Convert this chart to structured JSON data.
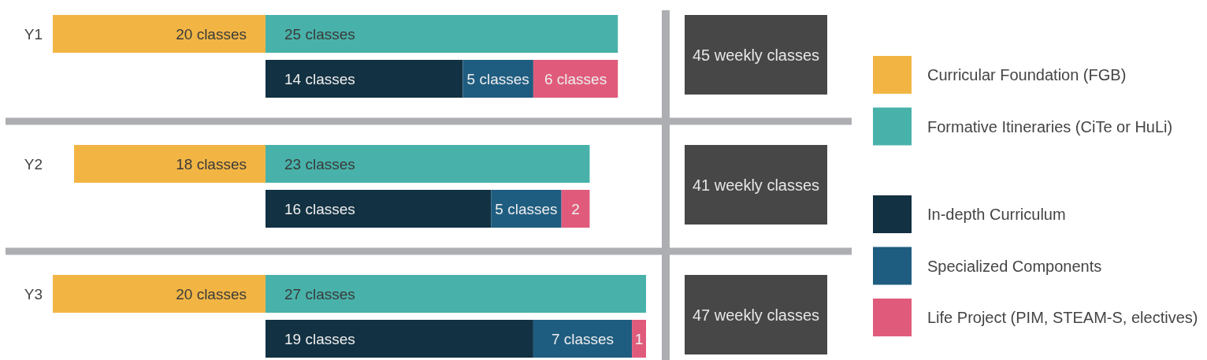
{
  "chart_data": [
    {
      "type": "bar",
      "orientation": "horizontal",
      "categories": [
        "Y1"
      ],
      "series": [
        {
          "name": "Curricular Foundation (FGB)",
          "color": "#f2b544",
          "values": [
            20
          ],
          "value_labels": [
            "20 classes"
          ]
        }
      ],
      "xlim": [
        20,
        0
      ],
      "tick_labels": "y",
      "legend": "right"
    },
    {
      "type": "bar",
      "orientation": "horizontal",
      "stacked": true,
      "categories": [
        null,
        null
      ],
      "series": [
        {
          "name": "Formative Itineraries (CiTe or HuLi)",
          "color": "#48b2aa",
          "values": [
            25,
            null
          ],
          "value_labels": [
            "25 classes",
            null
          ]
        },
        {
          "name": "In-depth Curriculum",
          "color": "#123142",
          "values": [
            null,
            14
          ],
          "value_labels": [
            null,
            "14 classes"
          ]
        },
        {
          "name": "Specialized Components",
          "color": "#1f5d80",
          "values": [
            null,
            5
          ],
          "value_labels": [
            null,
            "5 classes"
          ]
        },
        {
          "name": "Life Project (PIM, STEAM-S, electives)",
          "color": "#e05b7b",
          "values": [
            null,
            6
          ],
          "value_labels": [
            null,
            "6 classes"
          ]
        }
      ],
      "tick_labels": false,
      "legend": "right",
      "annotations": [
        "45 weekly classes"
      ]
    },
    {
      "type": "bar",
      "orientation": "horizontal",
      "categories": [
        "Y2"
      ],
      "series": [
        {
          "color": "#f2b544",
          "values": [
            18
          ],
          "value_labels": [
            "18 classes"
          ]
        }
      ],
      "tick_labels": "y"
    },
    {
      "type": "bar",
      "orientation": "horizontal",
      "stacked": true,
      "categories": [
        null,
        null
      ],
      "series": [
        {
          "color": "#48b2aa",
          "values": [
            23,
            null
          ],
          "value_labels": [
            "23 classes",
            null
          ]
        },
        {
          "color": "#123142",
          "values": [
            null,
            16
          ],
          "value_labels": [
            null,
            "16 classes"
          ]
        },
        {
          "color": "#1f5d80",
          "values": [
            null,
            5
          ],
          "value_labels": [
            null,
            "5 classes"
          ]
        },
        {
          "color": "#e05b7b",
          "values": [
            null,
            2
          ],
          "value_labels": [
            null,
            "2"
          ]
        }
      ],
      "tick_labels": false,
      "annotations": [
        "41 weekly classes"
      ]
    },
    {
      "type": "bar",
      "orientation": "horizontal",
      "categories": [
        "Y3"
      ],
      "series": [
        {
          "color": "#f2b544",
          "values": [
            20
          ],
          "value_labels": [
            "20 classes"
          ]
        }
      ],
      "tick_labels": "y"
    },
    {
      "type": "bar",
      "orientation": "horizontal",
      "stacked": true,
      "categories": [
        null,
        null
      ],
      "series": [
        {
          "color": "#48b2aa",
          "values": [
            27,
            null
          ],
          "value_labels": [
            "27 classes",
            null
          ]
        },
        {
          "color": "#123142",
          "values": [
            null,
            19
          ],
          "value_labels": [
            null,
            "19 classes"
          ]
        },
        {
          "color": "#1f5d80",
          "values": [
            null,
            7
          ],
          "value_labels": [
            null,
            "7 classes"
          ]
        },
        {
          "color": "#e05b7b",
          "values": [
            null,
            1
          ],
          "value_labels": [
            null,
            "1"
          ]
        }
      ],
      "tick_labels": false,
      "annotations": [
        "47 weekly classes"
      ]
    }
  ]
}
